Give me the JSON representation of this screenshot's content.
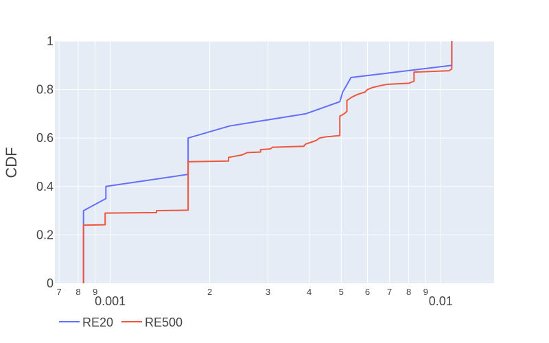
{
  "chart_data": {
    "type": "line",
    "title": "",
    "xlabel": "",
    "ylabel": "CDF",
    "x_scale": "log",
    "xlim": [
      0.00068,
      0.0145
    ],
    "ylim": [
      0,
      1
    ],
    "grid": true,
    "legend_position": "bottom-left",
    "y_ticks": [
      {
        "value": 0,
        "label": "0"
      },
      {
        "value": 0.2,
        "label": "0.2"
      },
      {
        "value": 0.4,
        "label": "0.4"
      },
      {
        "value": 0.6,
        "label": "0.6"
      },
      {
        "value": 0.8,
        "label": "0.8"
      },
      {
        "value": 1,
        "label": "1"
      }
    ],
    "x_minor_ticks": [
      {
        "value": 0.0007,
        "label": "7"
      },
      {
        "value": 0.0008,
        "label": "8"
      },
      {
        "value": 0.0009,
        "label": "9"
      },
      {
        "value": 0.002,
        "label": "2"
      },
      {
        "value": 0.003,
        "label": "3"
      },
      {
        "value": 0.004,
        "label": "4"
      },
      {
        "value": 0.005,
        "label": "5"
      },
      {
        "value": 0.006,
        "label": "6"
      },
      {
        "value": 0.007,
        "label": "7"
      },
      {
        "value": 0.008,
        "label": "8"
      },
      {
        "value": 0.009,
        "label": "9"
      }
    ],
    "x_major_ticks": [
      {
        "value": 0.001,
        "label": "0.001"
      },
      {
        "value": 0.01,
        "label": "0.01"
      }
    ],
    "series": [
      {
        "name": "RE20",
        "color": "#636efa",
        "points": [
          [
            0.00083,
            0.0
          ],
          [
            0.00083,
            0.05
          ],
          [
            0.00083,
            0.3
          ],
          [
            0.00097,
            0.35
          ],
          [
            0.00097,
            0.4
          ],
          [
            0.00172,
            0.45
          ],
          [
            0.00172,
            0.6
          ],
          [
            0.0023,
            0.65
          ],
          [
            0.0039,
            0.7
          ],
          [
            0.00495,
            0.75
          ],
          [
            0.00505,
            0.79
          ],
          [
            0.0052,
            0.82
          ],
          [
            0.00535,
            0.85
          ],
          [
            0.0108,
            0.9
          ],
          [
            0.0108,
            1.0
          ]
        ]
      },
      {
        "name": "RE500",
        "color": "#ef553b",
        "points": [
          [
            0.00083,
            0.0
          ],
          [
            0.00083,
            0.24
          ],
          [
            0.000965,
            0.242
          ],
          [
            0.000965,
            0.29
          ],
          [
            0.00138,
            0.292
          ],
          [
            0.00138,
            0.3
          ],
          [
            0.00172,
            0.302
          ],
          [
            0.00172,
            0.502
          ],
          [
            0.00228,
            0.505
          ],
          [
            0.00228,
            0.52
          ],
          [
            0.0025,
            0.53
          ],
          [
            0.0026,
            0.54
          ],
          [
            0.00285,
            0.542
          ],
          [
            0.00285,
            0.552
          ],
          [
            0.00305,
            0.555
          ],
          [
            0.0031,
            0.562
          ],
          [
            0.00385,
            0.566
          ],
          [
            0.0039,
            0.575
          ],
          [
            0.0041,
            0.585
          ],
          [
            0.0042,
            0.59
          ],
          [
            0.0043,
            0.6
          ],
          [
            0.0045,
            0.605
          ],
          [
            0.00495,
            0.61
          ],
          [
            0.00495,
            0.69
          ],
          [
            0.0051,
            0.7
          ],
          [
            0.0052,
            0.71
          ],
          [
            0.0052,
            0.755
          ],
          [
            0.0054,
            0.77
          ],
          [
            0.0056,
            0.78
          ],
          [
            0.0059,
            0.79
          ],
          [
            0.006,
            0.8
          ],
          [
            0.0062,
            0.808
          ],
          [
            0.0065,
            0.815
          ],
          [
            0.0069,
            0.822
          ],
          [
            0.008,
            0.826
          ],
          [
            0.0083,
            0.835
          ],
          [
            0.0083,
            0.872
          ],
          [
            0.0106,
            0.878
          ],
          [
            0.0108,
            0.885
          ],
          [
            0.0108,
            1.0
          ]
        ]
      }
    ]
  }
}
